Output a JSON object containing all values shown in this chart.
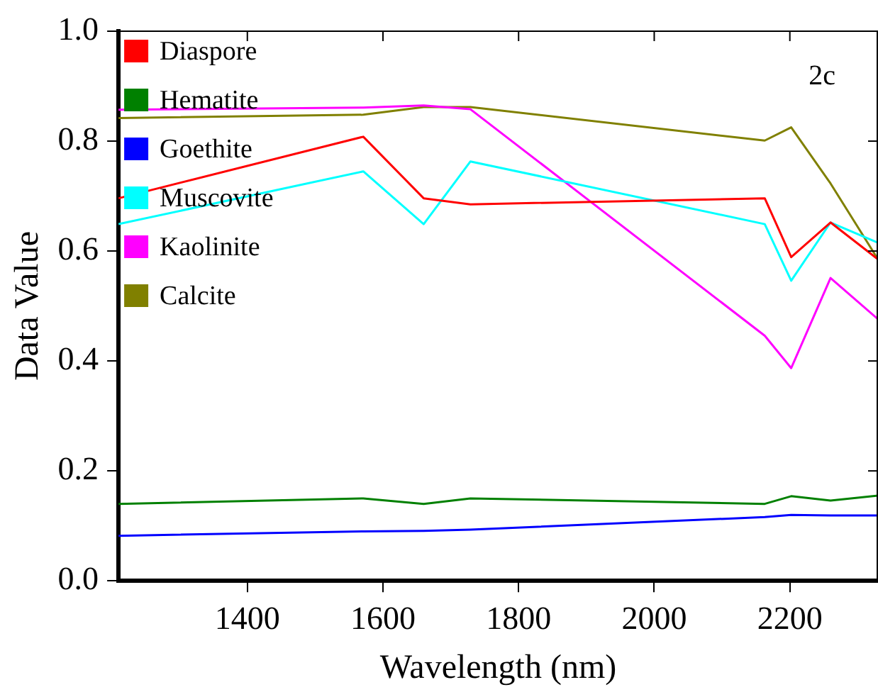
{
  "chart_data": {
    "type": "line",
    "xlabel": "Wavelength (nm)",
    "ylabel": "Data Value",
    "annotations": [
      "2c"
    ],
    "x": [
      1210,
      1571,
      1660,
      1729,
      2163,
      2202,
      2260,
      2330
    ],
    "xlim": [
      1210,
      2330
    ],
    "xticks": [
      1400,
      1600,
      1800,
      2000,
      2200
    ],
    "ylim": [
      0,
      1
    ],
    "yticks": [
      {
        "value": 0,
        "label": "0.0"
      },
      {
        "value": 0.2,
        "label": "0.2"
      },
      {
        "value": 0.4,
        "label": "0.4"
      },
      {
        "value": 0.6,
        "label": "0.6"
      },
      {
        "value": 0.8,
        "label": "0.8"
      },
      {
        "value": 1,
        "label": "1.0"
      }
    ],
    "grid": false,
    "legend": "top left",
    "marker": "none",
    "series": [
      {
        "name": "Diaspore",
        "color": "#ff0000",
        "values": [
          0.696,
          0.808,
          0.696,
          0.685,
          0.696,
          0.589,
          0.652,
          0.585
        ]
      },
      {
        "name": "Hematite",
        "color": "#008000",
        "values": [
          0.14,
          0.15,
          0.14,
          0.15,
          0.14,
          0.154,
          0.146,
          0.155
        ]
      },
      {
        "name": "Goethite",
        "color": "#0000ff",
        "values": [
          0.082,
          0.09,
          0.091,
          0.093,
          0.116,
          0.12,
          0.119,
          0.119
        ]
      },
      {
        "name": "Muscovite",
        "color": "#00ffff",
        "values": [
          0.649,
          0.745,
          0.649,
          0.763,
          0.649,
          0.546,
          0.652,
          0.615
        ]
      },
      {
        "name": "Kaolinite",
        "color": "#ff00ff",
        "values": [
          0.857,
          0.861,
          0.865,
          0.858,
          0.446,
          0.387,
          0.551,
          0.476
        ]
      },
      {
        "name": "Calcite",
        "color": "#808000",
        "values": [
          0.842,
          0.848,
          0.862,
          0.862,
          0.801,
          0.825,
          0.723,
          0.585
        ]
      }
    ]
  }
}
